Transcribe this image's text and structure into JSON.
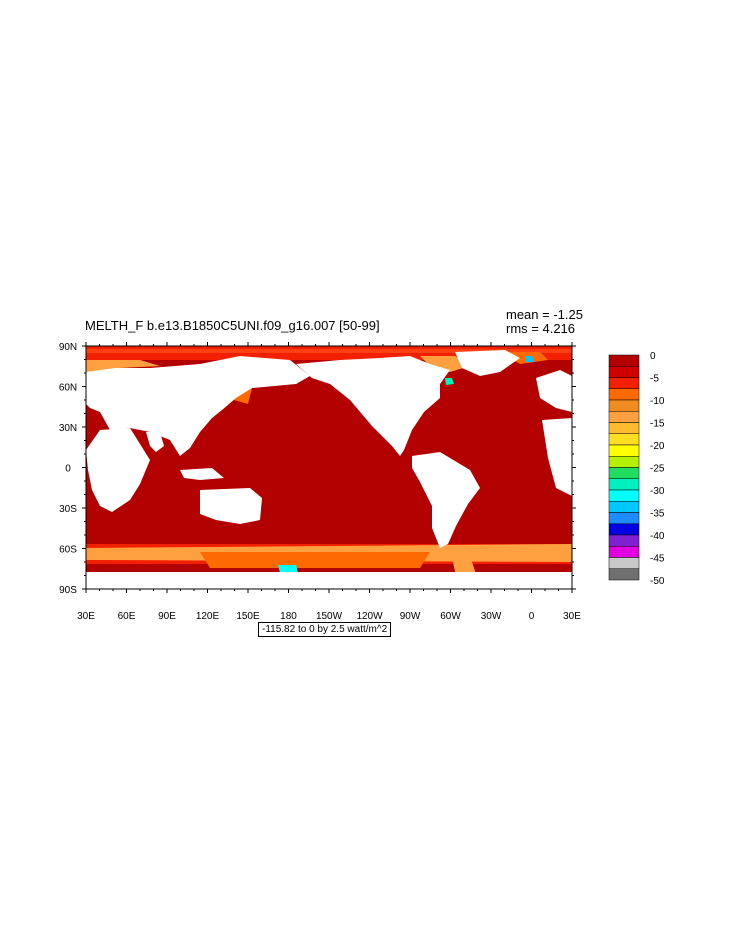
{
  "title": "MELTH_F b.e13.B1850C5UNI.f09_g16.007 [50-99]",
  "stats": {
    "mean": "mean = -1.25",
    "rms": "rms = 4.216"
  },
  "caption": "-115.82 to 0 by 2.5 watt/m^2",
  "lat_ticks": [
    "90N",
    "60N",
    "30N",
    "0",
    "30S",
    "60S",
    "90S"
  ],
  "lon_ticks": [
    "30E",
    "60E",
    "90E",
    "120E",
    "150E",
    "180",
    "150W",
    "120W",
    "90W",
    "60W",
    "30W",
    "0",
    "30E"
  ],
  "colorbar": {
    "labels": [
      "0",
      "-5",
      "-10",
      "-15",
      "-20",
      "-25",
      "-30",
      "-35",
      "-40",
      "-45",
      "-50"
    ],
    "colors": [
      "#b30000",
      "#d10000",
      "#f22000",
      "#ff6a00",
      "#f08c20",
      "#ffa040",
      "#ffbb30",
      "#ffdd20",
      "#ffff00",
      "#b4f000",
      "#20dd60",
      "#00f0c0",
      "#00ffff",
      "#00c8ff",
      "#1e8cff",
      "#0000e0",
      "#8020d0",
      "#e000e0",
      "#c8c8c8",
      "#707070"
    ]
  },
  "palette": {
    "land": "#ffffff",
    "ocean": "#b30000",
    "ice_edge": "#f22000",
    "ice_mid": "#ff6a00",
    "ice_far": "#ffa040"
  }
}
